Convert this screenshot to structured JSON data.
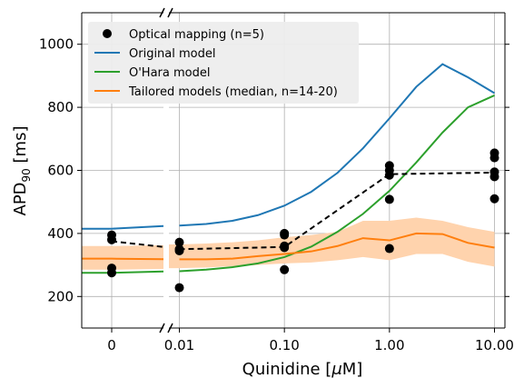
{
  "chart_data": {
    "type": "line",
    "xlabel_text": "Quinidine [",
    "xlabel_mu": "μ",
    "xlabel_unit": "M]",
    "ylabel_main": "APD",
    "ylabel_sub": "90",
    "ylabel_unit": " [ms]",
    "ylim": [
      100,
      1100
    ],
    "yticks": [
      200,
      400,
      600,
      800,
      1000
    ],
    "broken_x_axis": true,
    "x_left_segment": {
      "values": [
        0
      ],
      "labels": [
        "0"
      ]
    },
    "x_right_segment": {
      "scale": "log",
      "range": [
        0.01,
        10
      ],
      "ticks": [
        0.01,
        0.1,
        1,
        10
      ],
      "labels": [
        "0.01",
        "0.10",
        "1.00",
        "10.00"
      ]
    },
    "grid": true,
    "legend": {
      "position": "top-left",
      "entries": [
        "Optical mapping (n=5)",
        "Original model",
        "O'Hara model",
        "Tailored models (median, n=14-20)"
      ]
    },
    "colors": {
      "optical": "#000000",
      "original": "#1f77b4",
      "ohara": "#2ca02c",
      "tailored": "#ff7f0e",
      "band": "#ffd3ad"
    },
    "optical_points": [
      {
        "x": 0,
        "y": [
          395,
          380,
          290,
          275
        ]
      },
      {
        "x": 0.01,
        "y": [
          372,
          350,
          345,
          228
        ]
      },
      {
        "x": 0.1,
        "y": [
          400,
          395,
          360,
          355,
          285
        ]
      },
      {
        "x": 1,
        "y": [
          615,
          600,
          585,
          508,
          352
        ]
      },
      {
        "x": 10,
        "y": [
          655,
          640,
          595,
          580,
          510
        ]
      }
    ],
    "optical_mean": [
      {
        "x": 0,
        "y": 375
      },
      {
        "x": 0.01,
        "y": 350
      },
      {
        "x": 0.1,
        "y": 357
      },
      {
        "x": 1,
        "y": 588
      },
      {
        "x": 10,
        "y": 593
      }
    ],
    "series": [
      {
        "key": "original",
        "x": [
          0,
          0.01,
          0.018,
          0.032,
          0.056,
          0.1,
          0.18,
          0.32,
          0.56,
          1,
          1.8,
          3.2,
          5.6,
          10
        ],
        "values": [
          415,
          425,
          430,
          440,
          458,
          488,
          532,
          592,
          670,
          765,
          865,
          937,
          895,
          845
        ]
      },
      {
        "key": "ohara",
        "x": [
          0,
          0.01,
          0.018,
          0.032,
          0.056,
          0.1,
          0.18,
          0.32,
          0.56,
          1,
          1.8,
          3.2,
          5.6,
          10
        ],
        "values": [
          275,
          280,
          285,
          293,
          305,
          325,
          358,
          405,
          462,
          535,
          625,
          720,
          800,
          838
        ]
      },
      {
        "key": "tailored",
        "x": [
          0,
          0.01,
          0.018,
          0.032,
          0.056,
          0.1,
          0.18,
          0.32,
          0.56,
          1,
          1.8,
          3.2,
          5.6,
          10
        ],
        "values": [
          320,
          318,
          318,
          320,
          328,
          335,
          343,
          360,
          385,
          378,
          400,
          398,
          370,
          355
        ]
      }
    ],
    "tailored_band": {
      "x": [
        0,
        0.01,
        0.018,
        0.032,
        0.056,
        0.1,
        0.18,
        0.32,
        0.56,
        1,
        1.8,
        3.2,
        5.6,
        10
      ],
      "upper": [
        360,
        365,
        368,
        372,
        378,
        388,
        395,
        405,
        440,
        440,
        450,
        440,
        420,
        405
      ],
      "lower": [
        285,
        290,
        292,
        296,
        300,
        305,
        308,
        315,
        325,
        315,
        335,
        335,
        310,
        295
      ]
    }
  }
}
